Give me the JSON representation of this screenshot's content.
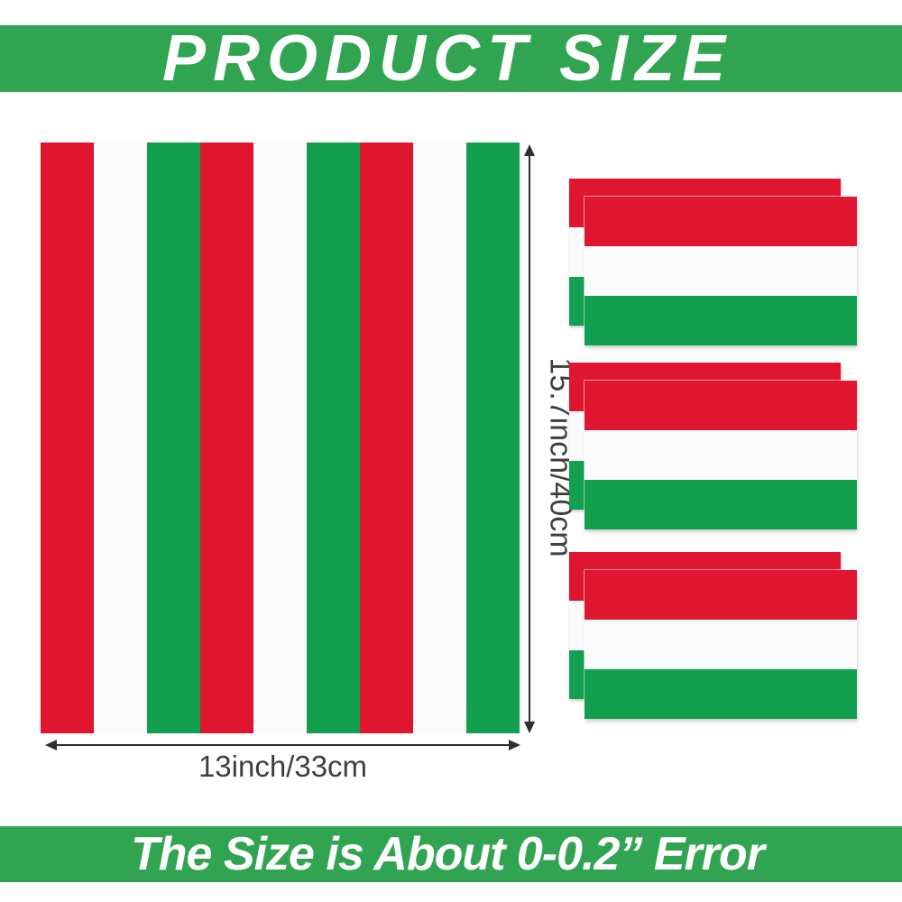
{
  "banners": {
    "top": {
      "label": "PRODUCT SIZE"
    },
    "bottom": {
      "label": "The Size is About 0-0.2” Error"
    }
  },
  "dimensions": {
    "height_label": "15.7inch/40cm",
    "width_label": "13inch/33cm"
  },
  "colors": {
    "banner_green": "#31a452",
    "flag_red": "#e0152f",
    "flag_white": "#fbfbfb",
    "flag_green": "#12a04f",
    "dimension_text": "#3f3f3f",
    "arrow": "#2f2f2f"
  },
  "striped_sheet": {
    "stripes": [
      "red",
      "white",
      "green",
      "red",
      "white",
      "green",
      "red",
      "white",
      "green"
    ]
  },
  "napkins": {
    "count": 3,
    "layers_per_stack": 2,
    "bands": [
      "red",
      "white",
      "green"
    ]
  }
}
